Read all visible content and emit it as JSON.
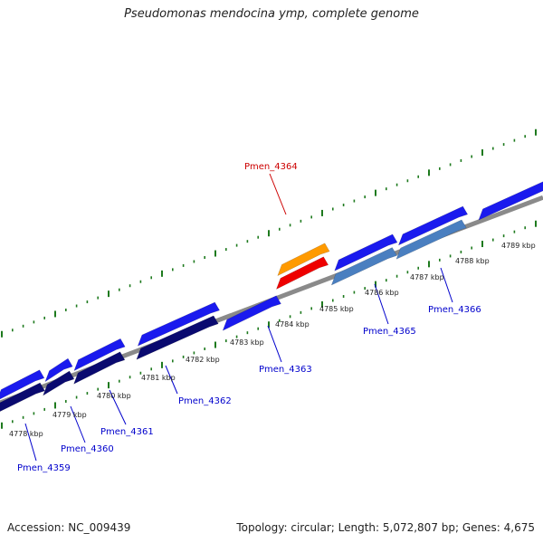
{
  "title": "Pseudomonas mendocina ymp, complete genome",
  "footer": {
    "accession": "Accession: NC_009439",
    "summary": "Topology: circular; Length: 5,072,807 bp; Genes: 4,675"
  },
  "colors": {
    "backbone": "#8a8a8a",
    "ticks": "#1e7a1e",
    "forward_gene": "#1a1aee",
    "reverse_gene": "#0a0a70",
    "highlight_top": "#ff9a00",
    "highlight_bottom": "#ee0000",
    "pale_gene": "#4a7fc0",
    "label_blue": "#0000cc",
    "label_red": "#cc0000"
  },
  "scale": {
    "unit": "kbp",
    "labels": [
      "4778 kbp",
      "4779 kbp",
      "4780 kbp",
      "4781 kbp",
      "4782 kbp",
      "4783 kbp",
      "4784 kbp",
      "4785 kbp",
      "4786 kbp",
      "4787 kbp",
      "4788 kbp",
      "4789 kbp"
    ]
  },
  "gene_labels": [
    {
      "id": "Pmen_4359",
      "text": "Pmen_4359",
      "color": "blue"
    },
    {
      "id": "Pmen_4360",
      "text": "Pmen_4360",
      "color": "blue"
    },
    {
      "id": "Pmen_4361",
      "text": "Pmen_4361",
      "color": "blue"
    },
    {
      "id": "Pmen_4362",
      "text": "Pmen_4362",
      "color": "blue"
    },
    {
      "id": "Pmen_4363",
      "text": "Pmen_4363",
      "color": "blue"
    },
    {
      "id": "Pmen_4364",
      "text": "Pmen_4364",
      "color": "red"
    },
    {
      "id": "Pmen_4365",
      "text": "Pmen_4365",
      "color": "blue"
    },
    {
      "id": "Pmen_4366",
      "text": "Pmen_4366",
      "color": "blue"
    }
  ]
}
